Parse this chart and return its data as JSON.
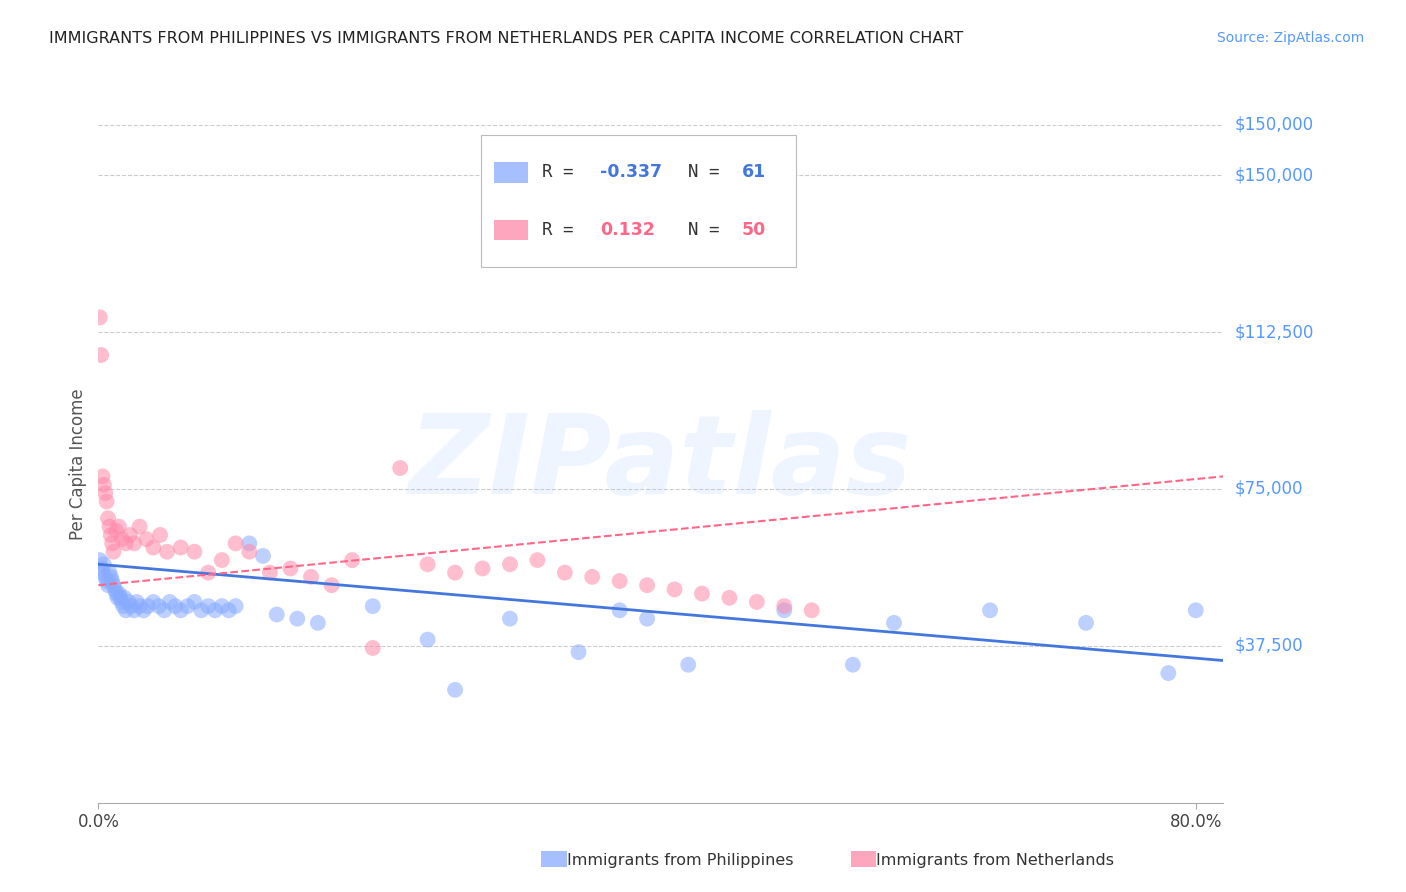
{
  "title": "IMMIGRANTS FROM PHILIPPINES VS IMMIGRANTS FROM NETHERLANDS PER CAPITA INCOME CORRELATION CHART",
  "source": "Source: ZipAtlas.com",
  "ylabel": "Per Capita Income",
  "ytick_labels": [
    "$37,500",
    "$75,000",
    "$112,500",
    "$150,000"
  ],
  "ytick_values": [
    37500,
    75000,
    112500,
    150000
  ],
  "ylim": [
    0,
    162000
  ],
  "xlim": [
    0.0,
    0.82
  ],
  "watermark": "ZIPatlas",
  "color_blue": "#88AAFF",
  "color_pink": "#FF88AA",
  "color_blue_line": "#4477DD",
  "color_pink_line": "#FF6688",
  "color_title": "#222222",
  "color_ytick": "#5599FF",
  "color_source": "#5599FF",
  "grid_color": "#CCCCCC",
  "philippine_x": [
    0.001,
    0.002,
    0.003,
    0.004,
    0.005,
    0.006,
    0.007,
    0.008,
    0.009,
    0.01,
    0.011,
    0.012,
    0.013,
    0.014,
    0.015,
    0.016,
    0.017,
    0.018,
    0.019,
    0.02,
    0.022,
    0.024,
    0.026,
    0.028,
    0.03,
    0.033,
    0.036,
    0.04,
    0.044,
    0.048,
    0.052,
    0.056,
    0.06,
    0.065,
    0.07,
    0.075,
    0.08,
    0.085,
    0.09,
    0.095,
    0.1,
    0.11,
    0.12,
    0.13,
    0.145,
    0.16,
    0.2,
    0.24,
    0.3,
    0.38,
    0.43,
    0.5,
    0.58,
    0.65,
    0.72,
    0.78,
    0.8,
    0.4,
    0.55,
    0.35,
    0.26
  ],
  "philippine_y": [
    58000,
    56000,
    55000,
    57000,
    54000,
    53000,
    52000,
    55000,
    54000,
    53000,
    52000,
    51000,
    50000,
    49000,
    50000,
    49000,
    48000,
    47000,
    49000,
    46000,
    48000,
    47000,
    46000,
    48000,
    47000,
    46000,
    47000,
    48000,
    47000,
    46000,
    48000,
    47000,
    46000,
    47000,
    48000,
    46000,
    47000,
    46000,
    47000,
    46000,
    47000,
    62000,
    59000,
    45000,
    44000,
    43000,
    47000,
    39000,
    44000,
    46000,
    33000,
    46000,
    43000,
    46000,
    43000,
    31000,
    46000,
    44000,
    33000,
    36000,
    27000
  ],
  "netherlands_x": [
    0.001,
    0.002,
    0.003,
    0.004,
    0.005,
    0.006,
    0.007,
    0.008,
    0.009,
    0.01,
    0.011,
    0.013,
    0.015,
    0.017,
    0.02,
    0.023,
    0.026,
    0.03,
    0.035,
    0.04,
    0.045,
    0.05,
    0.06,
    0.07,
    0.08,
    0.09,
    0.1,
    0.11,
    0.125,
    0.14,
    0.155,
    0.17,
    0.185,
    0.2,
    0.22,
    0.24,
    0.26,
    0.28,
    0.3,
    0.32,
    0.34,
    0.36,
    0.38,
    0.4,
    0.42,
    0.44,
    0.46,
    0.48,
    0.5,
    0.52
  ],
  "netherlands_y": [
    116000,
    107000,
    78000,
    76000,
    74000,
    72000,
    68000,
    66000,
    64000,
    62000,
    60000,
    65000,
    66000,
    63000,
    62000,
    64000,
    62000,
    66000,
    63000,
    61000,
    64000,
    60000,
    61000,
    60000,
    55000,
    58000,
    62000,
    60000,
    55000,
    56000,
    54000,
    52000,
    58000,
    37000,
    80000,
    57000,
    55000,
    56000,
    57000,
    58000,
    55000,
    54000,
    53000,
    52000,
    51000,
    50000,
    49000,
    48000,
    47000,
    46000
  ],
  "blue_line": {
    "x0": 0.0,
    "x1": 0.82,
    "y0": 57000,
    "y1": 34000
  },
  "pink_line": {
    "x0": 0.0,
    "x1": 0.82,
    "y0": 52000,
    "y1": 78000
  }
}
